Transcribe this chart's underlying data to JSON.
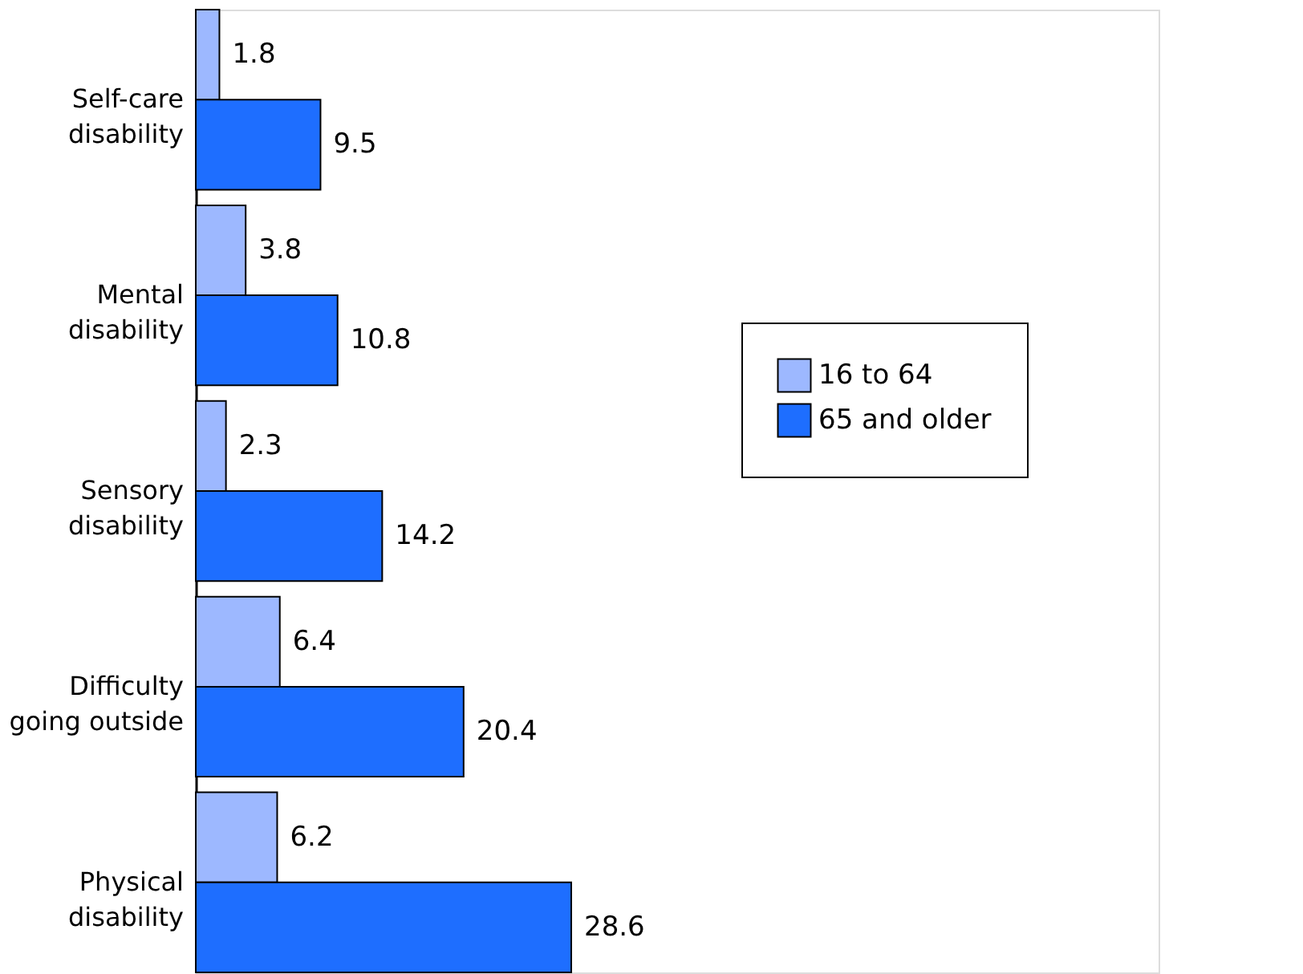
{
  "chart_data": {
    "type": "bar",
    "orientation": "horizontal",
    "categories": [
      "Self-care\ndisability",
      "Mental\ndisability",
      "Sensory\ndisability",
      "Difficulty\ngoing outside",
      "Physical\ndisability"
    ],
    "series": [
      {
        "name": "16 to 64",
        "color": "#9db8ff",
        "values": [
          1.8,
          3.8,
          2.3,
          6.4,
          6.2
        ]
      },
      {
        "name": "65 and older",
        "color": "#1e6eff",
        "values": [
          9.5,
          10.8,
          14.2,
          20.4,
          28.6
        ]
      }
    ],
    "data_labels": true,
    "legend": "right",
    "grid": false
  }
}
